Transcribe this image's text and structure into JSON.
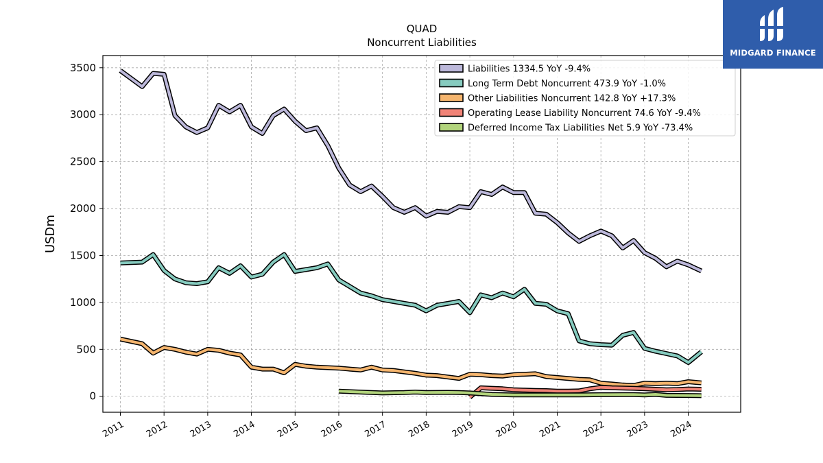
{
  "brand": {
    "name": "MIDGARD FINANCE",
    "bg_color": "#2f5dab",
    "icon": "midgard-logo-icon"
  },
  "chart_data": {
    "type": "line",
    "title": "QUAD",
    "subtitle": "Noncurrent  Liabilities",
    "xlabel": "",
    "ylabel": "USDm",
    "xlim": [
      2010.6,
      2025.2
    ],
    "ylim": [
      -170,
      3630
    ],
    "grid": true,
    "legend_position": "top-right",
    "x_ticks": [
      "2011",
      "2012",
      "2013",
      "2014",
      "2015",
      "2016",
      "2017",
      "2018",
      "2019",
      "2020",
      "2021",
      "2022",
      "2023",
      "2024"
    ],
    "y_ticks": [
      0,
      500,
      1000,
      1500,
      2000,
      2500,
      3000,
      3500
    ],
    "series": [
      {
        "name": "Liabilities",
        "legend": "Liabilities  1334.5 YoY -9.4%",
        "color": "#bcb8da",
        "x": [
          2011.0,
          2011.5,
          2011.75,
          2012.0,
          2012.25,
          2012.5,
          2012.75,
          2013.0,
          2013.25,
          2013.5,
          2013.75,
          2014.0,
          2014.25,
          2014.5,
          2014.75,
          2015.0,
          2015.25,
          2015.5,
          2015.75,
          2016.0,
          2016.25,
          2016.5,
          2016.75,
          2017.0,
          2017.25,
          2017.5,
          2017.75,
          2018.0,
          2018.25,
          2018.5,
          2018.75,
          2019.0,
          2019.25,
          2019.5,
          2019.75,
          2020.0,
          2020.25,
          2020.5,
          2020.75,
          2021.0,
          2021.25,
          2021.5,
          2021.75,
          2022.0,
          2022.25,
          2022.5,
          2022.75,
          2023.0,
          2023.25,
          2023.5,
          2023.75,
          2024.0,
          2024.3
        ],
        "y": [
          3470,
          3300,
          3440,
          3430,
          2990,
          2870,
          2810,
          2860,
          3100,
          3030,
          3100,
          2870,
          2800,
          2990,
          3060,
          2930,
          2830,
          2860,
          2670,
          2430,
          2250,
          2180,
          2240,
          2130,
          2010,
          1960,
          2010,
          1920,
          1970,
          1960,
          2020,
          2010,
          2180,
          2150,
          2230,
          2170,
          2170,
          1950,
          1940,
          1850,
          1740,
          1650,
          1710,
          1760,
          1710,
          1580,
          1660,
          1530,
          1470,
          1380,
          1440,
          1400,
          1334.5
        ]
      },
      {
        "name": "Long Term Debt Noncurrent",
        "legend": "Long Term Debt Noncurrent  473.9 YoY -1.0%",
        "color": "#86cbbf",
        "x": [
          2011.0,
          2011.5,
          2011.75,
          2012.0,
          2012.25,
          2012.5,
          2012.75,
          2013.0,
          2013.25,
          2013.5,
          2013.75,
          2014.0,
          2014.25,
          2014.5,
          2014.75,
          2015.0,
          2015.25,
          2015.5,
          2015.75,
          2016.0,
          2016.25,
          2016.5,
          2016.75,
          2017.0,
          2017.25,
          2017.5,
          2017.75,
          2018.0,
          2018.25,
          2018.5,
          2018.75,
          2019.0,
          2019.25,
          2019.5,
          2019.75,
          2020.0,
          2020.25,
          2020.5,
          2020.75,
          2021.0,
          2021.25,
          2021.5,
          2021.75,
          2022.0,
          2022.25,
          2022.5,
          2022.75,
          2023.0,
          2023.25,
          2023.5,
          2023.75,
          2024.0,
          2024.3
        ],
        "y": [
          1420,
          1430,
          1510,
          1340,
          1250,
          1210,
          1200,
          1220,
          1370,
          1310,
          1390,
          1270,
          1300,
          1430,
          1510,
          1330,
          1350,
          1370,
          1410,
          1240,
          1170,
          1100,
          1070,
          1030,
          1010,
          990,
          970,
          910,
          970,
          990,
          1010,
          890,
          1080,
          1050,
          1100,
          1060,
          1140,
          990,
          980,
          910,
          880,
          590,
          560,
          550,
          545,
          650,
          680,
          510,
          480,
          455,
          430,
          360,
          473.9
        ]
      },
      {
        "name": "Other Liabilities Noncurrent",
        "legend": "Other Liabilities Noncurrent  142.8 YoY +17.3%",
        "color": "#f5b56e",
        "x": [
          2011.0,
          2011.5,
          2011.75,
          2012.0,
          2012.25,
          2012.5,
          2012.75,
          2013.0,
          2013.25,
          2013.5,
          2013.75,
          2014.0,
          2014.25,
          2014.5,
          2014.75,
          2015.0,
          2015.25,
          2015.5,
          2015.75,
          2016.0,
          2016.25,
          2016.5,
          2016.75,
          2017.0,
          2017.25,
          2017.5,
          2017.75,
          2018.0,
          2018.25,
          2018.5,
          2018.75,
          2019.0,
          2019.25,
          2019.5,
          2019.75,
          2020.0,
          2020.25,
          2020.5,
          2020.75,
          2021.0,
          2021.25,
          2021.5,
          2021.75,
          2022.0,
          2022.25,
          2022.5,
          2022.75,
          2023.0,
          2023.25,
          2023.5,
          2023.75,
          2024.0,
          2024.3
        ],
        "y": [
          610,
          560,
          460,
          520,
          500,
          470,
          450,
          500,
          490,
          460,
          440,
          310,
          290,
          290,
          250,
          340,
          320,
          310,
          305,
          300,
          290,
          280,
          310,
          280,
          275,
          260,
          245,
          225,
          220,
          205,
          190,
          235,
          230,
          220,
          215,
          230,
          235,
          240,
          210,
          200,
          190,
          180,
          175,
          140,
          130,
          120,
          115,
          140,
          135,
          140,
          135,
          155,
          142.8
        ]
      },
      {
        "name": "Operating Lease Liability Noncurrent",
        "legend": "Operating Lease Liability Noncurrent  74.6 YoY -9.4%",
        "color": "#f08377",
        "x": [
          2019.0,
          2019.25,
          2019.5,
          2019.75,
          2020.0,
          2020.25,
          2020.5,
          2020.75,
          2021.0,
          2021.25,
          2021.5,
          2021.75,
          2022.0,
          2022.25,
          2022.5,
          2022.75,
          2023.0,
          2023.25,
          2023.5,
          2023.75,
          2024.0,
          2024.3
        ],
        "y": [
          -10,
          90,
          85,
          80,
          70,
          65,
          62,
          60,
          55,
          55,
          57,
          80,
          95,
          90,
          88,
          85,
          80,
          75,
          70,
          72,
          78,
          74.6
        ]
      },
      {
        "name": "Deferred Income Tax Liabilities Net",
        "legend": "Deferred Income Tax Liabilities Net  5.9 YoY -73.4%",
        "color": "#b2d47c",
        "x": [
          2016.0,
          2016.5,
          2017.0,
          2017.5,
          2017.75,
          2018.0,
          2018.5,
          2018.75,
          2019.0,
          2019.5,
          2020.0,
          2020.5,
          2021.0,
          2021.5,
          2022.0,
          2022.5,
          2022.75,
          2023.0,
          2023.25,
          2023.5,
          2024.0,
          2024.3
        ],
        "y": [
          55,
          45,
          35,
          40,
          45,
          40,
          42,
          40,
          35,
          20,
          15,
          15,
          15,
          15,
          17,
          18,
          18,
          15,
          20,
          10,
          8,
          5.9
        ]
      }
    ]
  }
}
